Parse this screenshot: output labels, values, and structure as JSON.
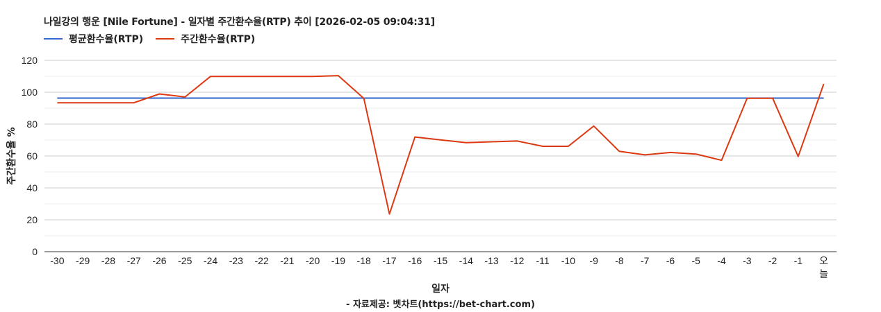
{
  "header": {
    "title": "나일강의 행운 [Nile Fortune] - 일자별 주간환수율(RTP) 추이 [2026-02-05 09:04:31]"
  },
  "legend": [
    {
      "label": "평균환수율(RTP)",
      "color": "#3366cc"
    },
    {
      "label": "주간환수율(RTP)",
      "color": "#dc3912"
    }
  ],
  "axes": {
    "xlabel": "일자",
    "ylabel": "주간환수율 %",
    "credit": "- 자료제공: 벳차트(https://bet-chart.com)"
  },
  "chart_data": {
    "type": "line",
    "title": "나일강의 행운 [Nile Fortune] - 일자별 주간환수율(RTP) 추이 [2026-02-05 09:04:31]",
    "xlabel": "일자",
    "ylabel": "주간환수율 %",
    "ylim": [
      0,
      120
    ],
    "yticks": [
      0,
      20,
      40,
      60,
      80,
      100,
      120
    ],
    "grid": true,
    "legend_position": "top",
    "categories": [
      "-30",
      "-29",
      "-28",
      "-27",
      "-26",
      "-25",
      "-24",
      "-23",
      "-22",
      "-21",
      "-20",
      "-19",
      "-18",
      "-17",
      "-16",
      "-15",
      "-14",
      "-13",
      "-12",
      "-11",
      "-10",
      "-9",
      "-8",
      "-7",
      "-6",
      "-5",
      "-4",
      "-3",
      "-2",
      "-1",
      "오늘"
    ],
    "series": [
      {
        "name": "평균환수율(RTP)",
        "color": "#3366cc",
        "values": [
          96.3,
          96.3,
          96.3,
          96.3,
          96.3,
          96.3,
          96.3,
          96.3,
          96.3,
          96.3,
          96.3,
          96.3,
          96.3,
          96.3,
          96.3,
          96.3,
          96.3,
          96.3,
          96.3,
          96.3,
          96.3,
          96.3,
          96.3,
          96.3,
          96.3,
          96.3,
          96.3,
          96.3,
          96.3,
          96.3,
          96.3
        ]
      },
      {
        "name": "주간환수율(RTP)",
        "color": "#dc3912",
        "values": [
          93.4,
          93.4,
          93.4,
          93.4,
          98.9,
          97.0,
          109.9,
          109.9,
          109.9,
          109.9,
          109.9,
          110.4,
          96.1,
          23.6,
          71.9,
          70.1,
          68.4,
          68.9,
          69.4,
          66.1,
          66.1,
          78.8,
          62.9,
          60.7,
          62.2,
          61.2,
          57.3,
          96.2,
          96.2,
          59.7,
          105.2
        ]
      }
    ]
  }
}
